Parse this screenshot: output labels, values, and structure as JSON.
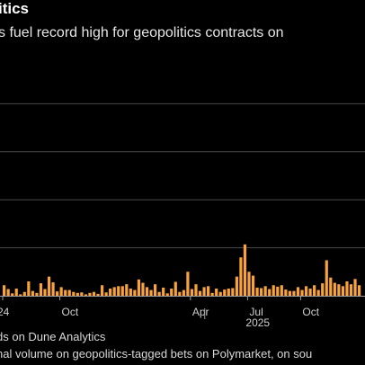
{
  "header": {
    "title": "itics",
    "subtitle": "s fuel record high for geopolitics contracts on"
  },
  "footer": {
    "source": "ds on Dune Analytics",
    "note": "nal volume on geopolitics-tagged bets on Polymarket, on sou"
  },
  "colors": {
    "bar": "#f7a23b",
    "grid": "#4a4a4a",
    "axis": "#9a9a9a",
    "background": "#000000"
  },
  "chart_data": {
    "type": "bar",
    "title": "itics",
    "subtitle": "s fuel record high for geopolitics contracts on",
    "xlabel": "",
    "ylabel": "",
    "ylim": [
      0,
      5
    ],
    "grid": true,
    "x_tick_labels": [
      {
        "label": "24",
        "week": 0
      },
      {
        "label": "Oct",
        "week": 14
      },
      {
        "label": "Apr",
        "week": 46
      },
      {
        "label": "Jul",
        "week": 60
      },
      {
        "label": "2025",
        "week": 60
      },
      {
        "label": "Oct",
        "week": 73
      }
    ],
    "values": [
      0.22,
      0.14,
      0.05,
      0.15,
      0.03,
      0.08,
      0.3,
      0.1,
      0.06,
      0.26,
      0.14,
      0.4,
      0.28,
      0.09,
      0.18,
      0.12,
      0.12,
      0.08,
      0.06,
      0.07,
      0.03,
      0.06,
      0.08,
      0.04,
      0.22,
      0.07,
      0.15,
      0.18,
      0.2,
      0.2,
      0.24,
      0.15,
      0.12,
      0.34,
      0.27,
      0.18,
      0.12,
      0.24,
      0.08,
      0.17,
      0.05,
      0.15,
      0.29,
      0.08,
      0.12,
      0.5,
      0.14,
      0.24,
      0.1,
      0.18,
      0.2,
      0.06,
      0.15,
      0.08,
      0.13,
      0.15,
      0.16,
      0.4,
      0.8,
      1.07,
      0.5,
      0.42,
      0.17,
      0.16,
      0.2,
      0.14,
      0.22,
      0.19,
      0.22,
      0.13,
      0.1,
      0.1,
      0.18,
      0.12,
      0.2,
      0.15,
      0.22,
      0.12,
      0.26,
      0.74,
      0.38,
      0.27,
      0.24,
      0.2,
      0.3,
      0.24,
      0.35,
      0.22
    ]
  }
}
